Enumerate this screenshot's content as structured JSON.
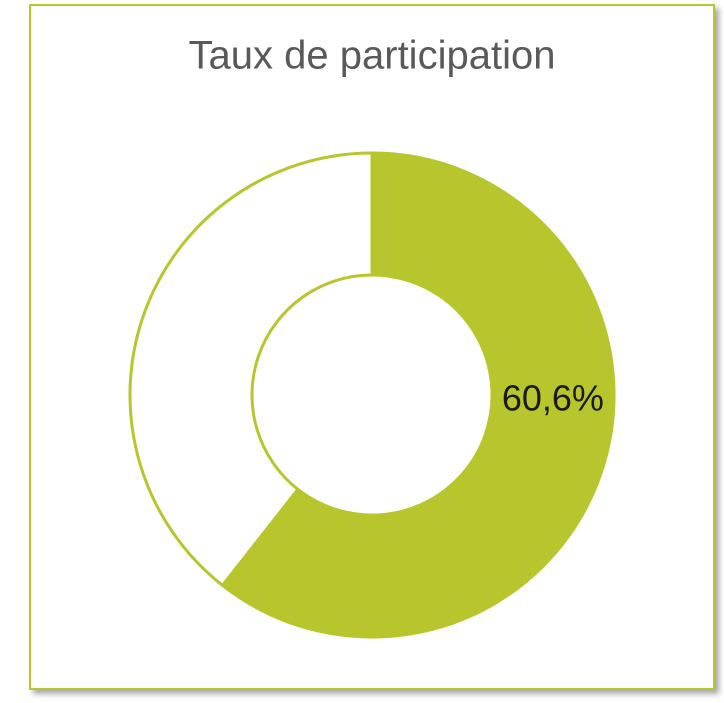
{
  "chart_data": {
    "type": "donut",
    "title": "Taux de participation",
    "values": [
      60.6,
      39.4
    ],
    "value_labels": [
      "60,6%",
      null
    ],
    "colors": [
      "#b8c62e",
      "#ffffff"
    ],
    "edge_color": "#b8c62e"
  }
}
